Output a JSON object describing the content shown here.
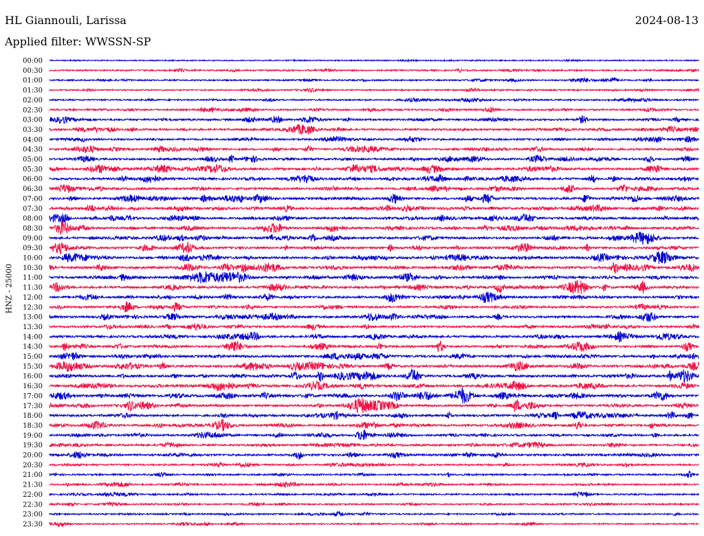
{
  "header": {
    "station": "HL Giannouli, Larissa",
    "date": "2024-08-13",
    "filter_label": "Applied filter: WWSSN-SP"
  },
  "chart_data": {
    "type": "helicorder",
    "ylabel": "HNZ - 25000",
    "trace_labels": [
      "00:00",
      "00:30",
      "01:00",
      "01:30",
      "02:00",
      "02:30",
      "03:00",
      "03:30",
      "04:00",
      "04:30",
      "05:00",
      "05:30",
      "06:00",
      "06:30",
      "07:00",
      "07:30",
      "08:00",
      "08:30",
      "09:00",
      "09:30",
      "10:00",
      "10:30",
      "11:00",
      "11:30",
      "12:00",
      "12:30",
      "13:00",
      "13:30",
      "14:00",
      "14:30",
      "15:00",
      "15:30",
      "16:00",
      "16:30",
      "17:00",
      "17:30",
      "18:00",
      "18:30",
      "19:00",
      "19:30",
      "20:00",
      "20:30",
      "21:00",
      "21:30",
      "22:00",
      "22:30",
      "23:00",
      "23:30"
    ],
    "trace_colors": [
      "#0000cc",
      "#ee1144"
    ],
    "activity_level": [
      0.15,
      0.35,
      0.3,
      0.3,
      0.35,
      0.45,
      0.55,
      0.6,
      0.55,
      0.6,
      0.6,
      0.75,
      0.75,
      0.7,
      0.75,
      0.75,
      0.75,
      0.75,
      0.7,
      0.75,
      0.85,
      0.8,
      0.75,
      0.75,
      0.7,
      0.65,
      0.7,
      0.65,
      0.7,
      0.65,
      0.75,
      0.75,
      0.8,
      0.8,
      0.8,
      0.7,
      0.7,
      0.65,
      0.6,
      0.6,
      0.6,
      0.45,
      0.4,
      0.4,
      0.35,
      0.4,
      0.35,
      0.3
    ]
  }
}
